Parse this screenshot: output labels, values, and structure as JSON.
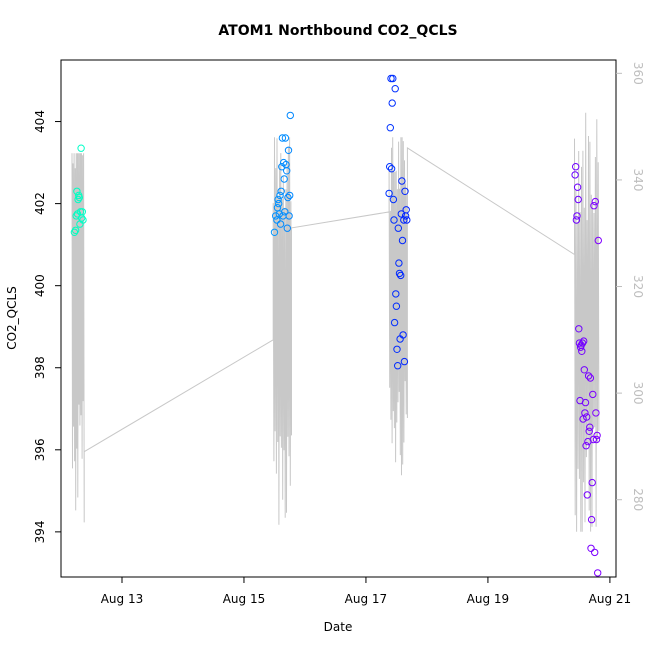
{
  "chart_data": {
    "type": "scatter",
    "title": "ATOM1 Northbound CO2_QCLS",
    "xlabel": "Date",
    "ylabel": "CO2_QCLS",
    "x_ticks": [
      "Aug 13",
      "Aug 15",
      "Aug 17",
      "Aug 19",
      "Aug 21"
    ],
    "x_tick_days": [
      13,
      15,
      17,
      19,
      21
    ],
    "xlim_days": [
      12.0,
      21.1
    ],
    "y_ticks": [
      394,
      396,
      398,
      400,
      402,
      404
    ],
    "ylim": [
      392.9,
      405.5
    ],
    "y2_ticks": [
      280,
      300,
      320,
      340,
      360
    ],
    "y2lim": [
      265.5,
      362.5
    ],
    "grid": false,
    "series": [
      {
        "kind": "points",
        "points": [
          [
            12.22,
            401.3
          ],
          [
            12.24,
            401.35
          ],
          [
            12.25,
            401.7
          ],
          [
            12.26,
            402.3
          ],
          [
            12.27,
            401.75
          ],
          [
            12.28,
            402.1
          ],
          [
            12.29,
            402.2
          ],
          [
            12.3,
            402.15
          ],
          [
            12.31,
            401.5
          ],
          [
            12.32,
            401.8
          ],
          [
            12.33,
            403.35
          ],
          [
            12.34,
            401.65
          ],
          [
            12.35,
            401.8
          ],
          [
            12.36,
            401.6
          ],
          [
            15.5,
            401.3
          ],
          [
            15.52,
            401.7
          ],
          [
            15.54,
            401.6
          ],
          [
            15.55,
            401.9
          ],
          [
            15.56,
            402.1
          ],
          [
            15.57,
            402.0
          ],
          [
            15.58,
            401.75
          ],
          [
            15.59,
            402.2
          ],
          [
            15.6,
            401.5
          ],
          [
            15.61,
            402.3
          ],
          [
            15.62,
            402.9
          ],
          [
            15.63,
            403.6
          ],
          [
            15.64,
            401.7
          ],
          [
            15.65,
            403.0
          ],
          [
            15.66,
            402.6
          ],
          [
            15.67,
            401.8
          ],
          [
            15.68,
            403.6
          ],
          [
            15.69,
            402.95
          ],
          [
            15.7,
            402.8
          ],
          [
            15.71,
            401.4
          ],
          [
            15.72,
            402.15
          ],
          [
            15.73,
            403.3
          ],
          [
            15.74,
            401.7
          ],
          [
            15.75,
            402.2
          ],
          [
            15.76,
            404.15
          ],
          [
            17.38,
            402.25
          ],
          [
            17.39,
            402.9
          ],
          [
            17.4,
            403.85
          ],
          [
            17.41,
            405.05
          ],
          [
            17.42,
            402.85
          ],
          [
            17.43,
            404.45
          ],
          [
            17.44,
            405.05
          ],
          [
            17.45,
            402.1
          ],
          [
            17.46,
            401.6
          ],
          [
            17.47,
            399.1
          ],
          [
            17.48,
            404.8
          ],
          [
            17.49,
            399.8
          ],
          [
            17.5,
            399.5
          ],
          [
            17.51,
            398.45
          ],
          [
            17.52,
            398.05
          ],
          [
            17.53,
            401.4
          ],
          [
            17.54,
            400.55
          ],
          [
            17.55,
            400.3
          ],
          [
            17.56,
            398.7
          ],
          [
            17.57,
            400.25
          ],
          [
            17.58,
            401.75
          ],
          [
            17.59,
            402.55
          ],
          [
            17.6,
            401.1
          ],
          [
            17.61,
            398.8
          ],
          [
            17.62,
            401.6
          ],
          [
            17.63,
            398.15
          ],
          [
            17.64,
            402.3
          ],
          [
            17.65,
            401.7
          ],
          [
            17.66,
            401.85
          ],
          [
            17.67,
            401.6
          ],
          [
            20.43,
            402.7
          ],
          [
            20.44,
            402.9
          ],
          [
            20.45,
            401.6
          ],
          [
            20.46,
            401.7
          ],
          [
            20.47,
            402.4
          ],
          [
            20.48,
            402.1
          ],
          [
            20.49,
            398.95
          ],
          [
            20.5,
            398.6
          ],
          [
            20.51,
            397.2
          ],
          [
            20.52,
            398.5
          ],
          [
            20.53,
            398.55
          ],
          [
            20.54,
            398.4
          ],
          [
            20.55,
            398.6
          ],
          [
            20.56,
            396.75
          ],
          [
            20.57,
            398.65
          ],
          [
            20.58,
            397.95
          ],
          [
            20.59,
            396.9
          ],
          [
            20.6,
            397.15
          ],
          [
            20.61,
            396.1
          ],
          [
            20.62,
            396.8
          ],
          [
            20.63,
            394.9
          ],
          [
            20.64,
            396.2
          ],
          [
            20.65,
            397.8
          ],
          [
            20.66,
            396.45
          ],
          [
            20.67,
            396.55
          ],
          [
            20.68,
            397.75
          ],
          [
            20.69,
            393.6
          ],
          [
            20.7,
            394.3
          ],
          [
            20.71,
            395.2
          ],
          [
            20.72,
            397.35
          ],
          [
            20.73,
            396.25
          ],
          [
            20.74,
            401.95
          ],
          [
            20.75,
            393.5
          ],
          [
            20.76,
            402.05
          ],
          [
            20.77,
            396.9
          ],
          [
            20.78,
            396.25
          ],
          [
            20.79,
            396.35
          ],
          [
            20.8,
            393.0
          ],
          [
            20.81,
            401.1
          ]
        ]
      },
      {
        "kind": "line",
        "axis": "right",
        "segments": [
          {
            "start": 12.18,
            "end": 12.38,
            "n": 24,
            "base": 320,
            "amp": 45,
            "floor": 270,
            "ceil": 345
          },
          {
            "start": 15.48,
            "end": 15.78,
            "n": 30,
            "base": 315,
            "amp": 40,
            "floor": 273,
            "ceil": 348
          },
          {
            "start": 17.38,
            "end": 17.68,
            "n": 32,
            "base": 318,
            "amp": 34,
            "floor": 282,
            "ceil": 348
          },
          {
            "start": 20.42,
            "end": 20.82,
            "n": 36,
            "base": 313,
            "amp": 42,
            "floor": 274,
            "ceil": 357
          }
        ],
        "bridges": [
          [
            12.38,
            289
          ],
          [
            15.48,
            310
          ],
          [
            15.78,
            331
          ],
          [
            17.38,
            334
          ],
          [
            17.68,
            346
          ],
          [
            20.42,
            326
          ]
        ]
      }
    ]
  }
}
